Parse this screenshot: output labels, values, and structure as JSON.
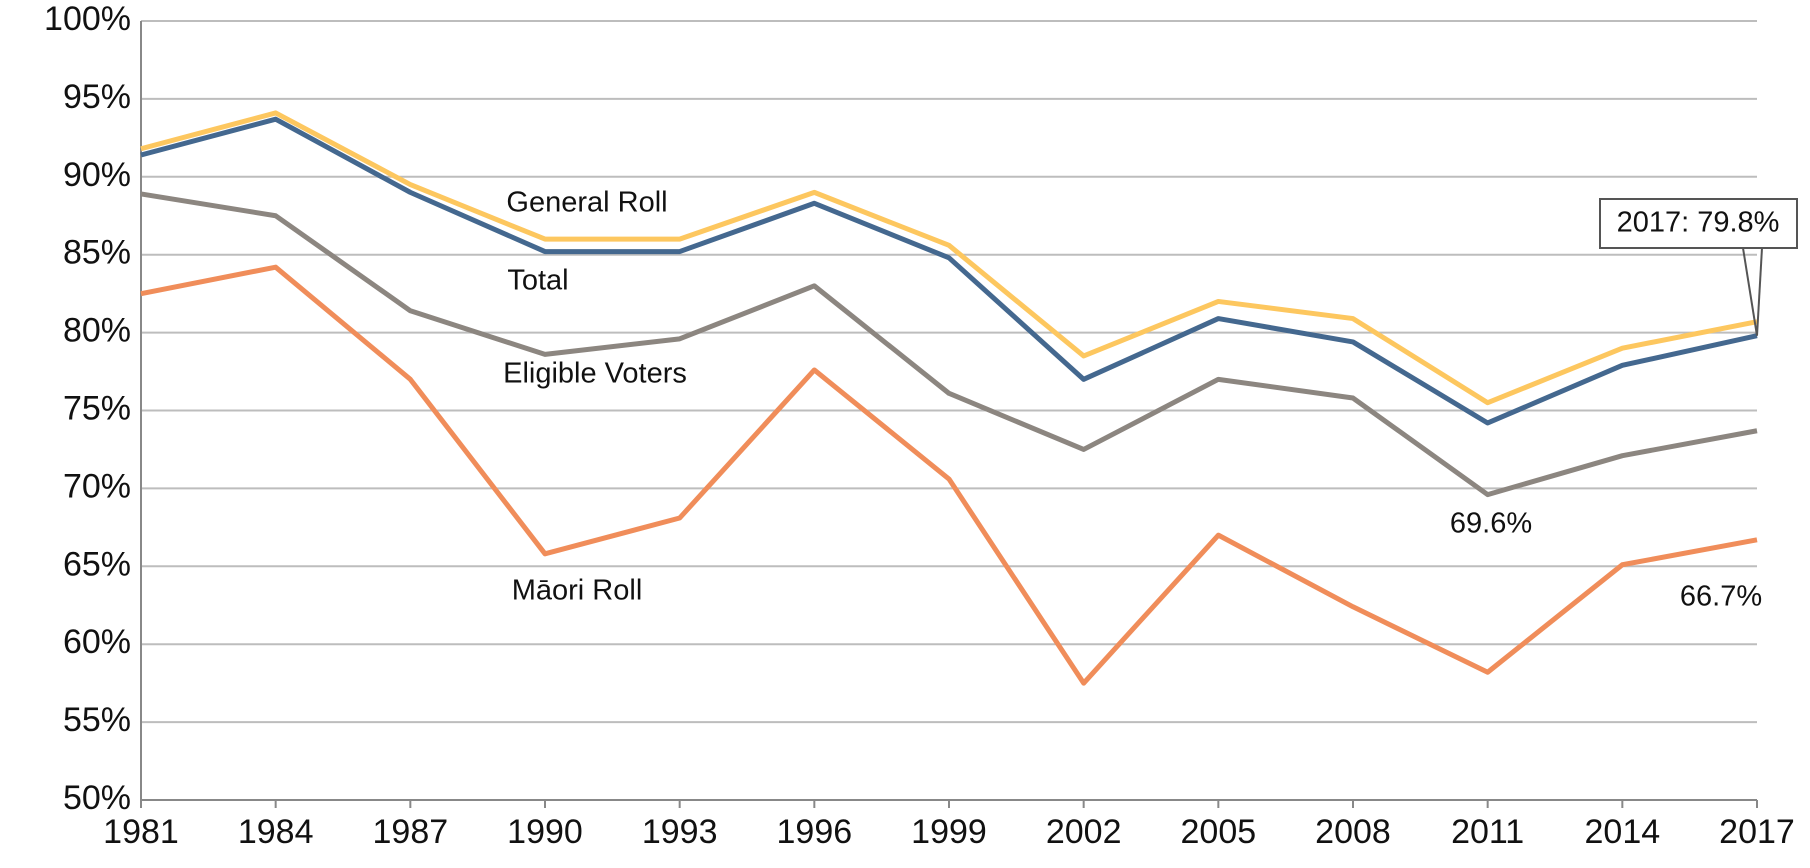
{
  "chart_data": {
    "type": "line",
    "categories": [
      "1981",
      "1984",
      "1987",
      "1990",
      "1993",
      "1996",
      "1999",
      "2002",
      "2005",
      "2008",
      "2011",
      "2014",
      "2017"
    ],
    "series": [
      {
        "name": "General Roll",
        "color": "#fdc75f",
        "values": [
          91.8,
          94.1,
          89.5,
          86.0,
          86.0,
          89.0,
          85.6,
          78.5,
          82.0,
          80.9,
          75.5,
          79.0,
          80.7
        ]
      },
      {
        "name": "Total",
        "color": "#44688f",
        "values": [
          91.4,
          93.7,
          89.0,
          85.2,
          85.2,
          88.3,
          84.8,
          77.0,
          80.9,
          79.4,
          74.2,
          77.9,
          79.8
        ]
      },
      {
        "name": "Eligible Voters",
        "color": "#8c8680",
        "values": [
          88.9,
          87.5,
          81.4,
          78.6,
          79.6,
          83.0,
          76.1,
          72.5,
          77.0,
          75.8,
          69.6,
          72.1,
          73.7
        ]
      },
      {
        "name": "Māori Roll",
        "color": "#f08d5a",
        "values": [
          82.5,
          84.2,
          77.0,
          65.8,
          68.1,
          77.6,
          70.6,
          57.5,
          67.0,
          62.4,
          58.2,
          65.1,
          66.7
        ]
      }
    ],
    "annotations": [
      "69.6%",
      "66.7%",
      "2017: 79.8%"
    ],
    "ylim": [
      50,
      100
    ],
    "yticks": [
      {
        "value": 50,
        "label": "50%"
      },
      {
        "value": 55,
        "label": "55%"
      },
      {
        "value": 60,
        "label": "60%"
      },
      {
        "value": 65,
        "label": "65%"
      },
      {
        "value": 70,
        "label": "70%"
      },
      {
        "value": 75,
        "label": "75%"
      },
      {
        "value": 80,
        "label": "80%"
      },
      {
        "value": 85,
        "label": "85%"
      },
      {
        "value": 90,
        "label": "90%"
      },
      {
        "value": 95,
        "label": "95%"
      },
      {
        "value": 100,
        "label": "100%"
      }
    ],
    "grid": true
  }
}
